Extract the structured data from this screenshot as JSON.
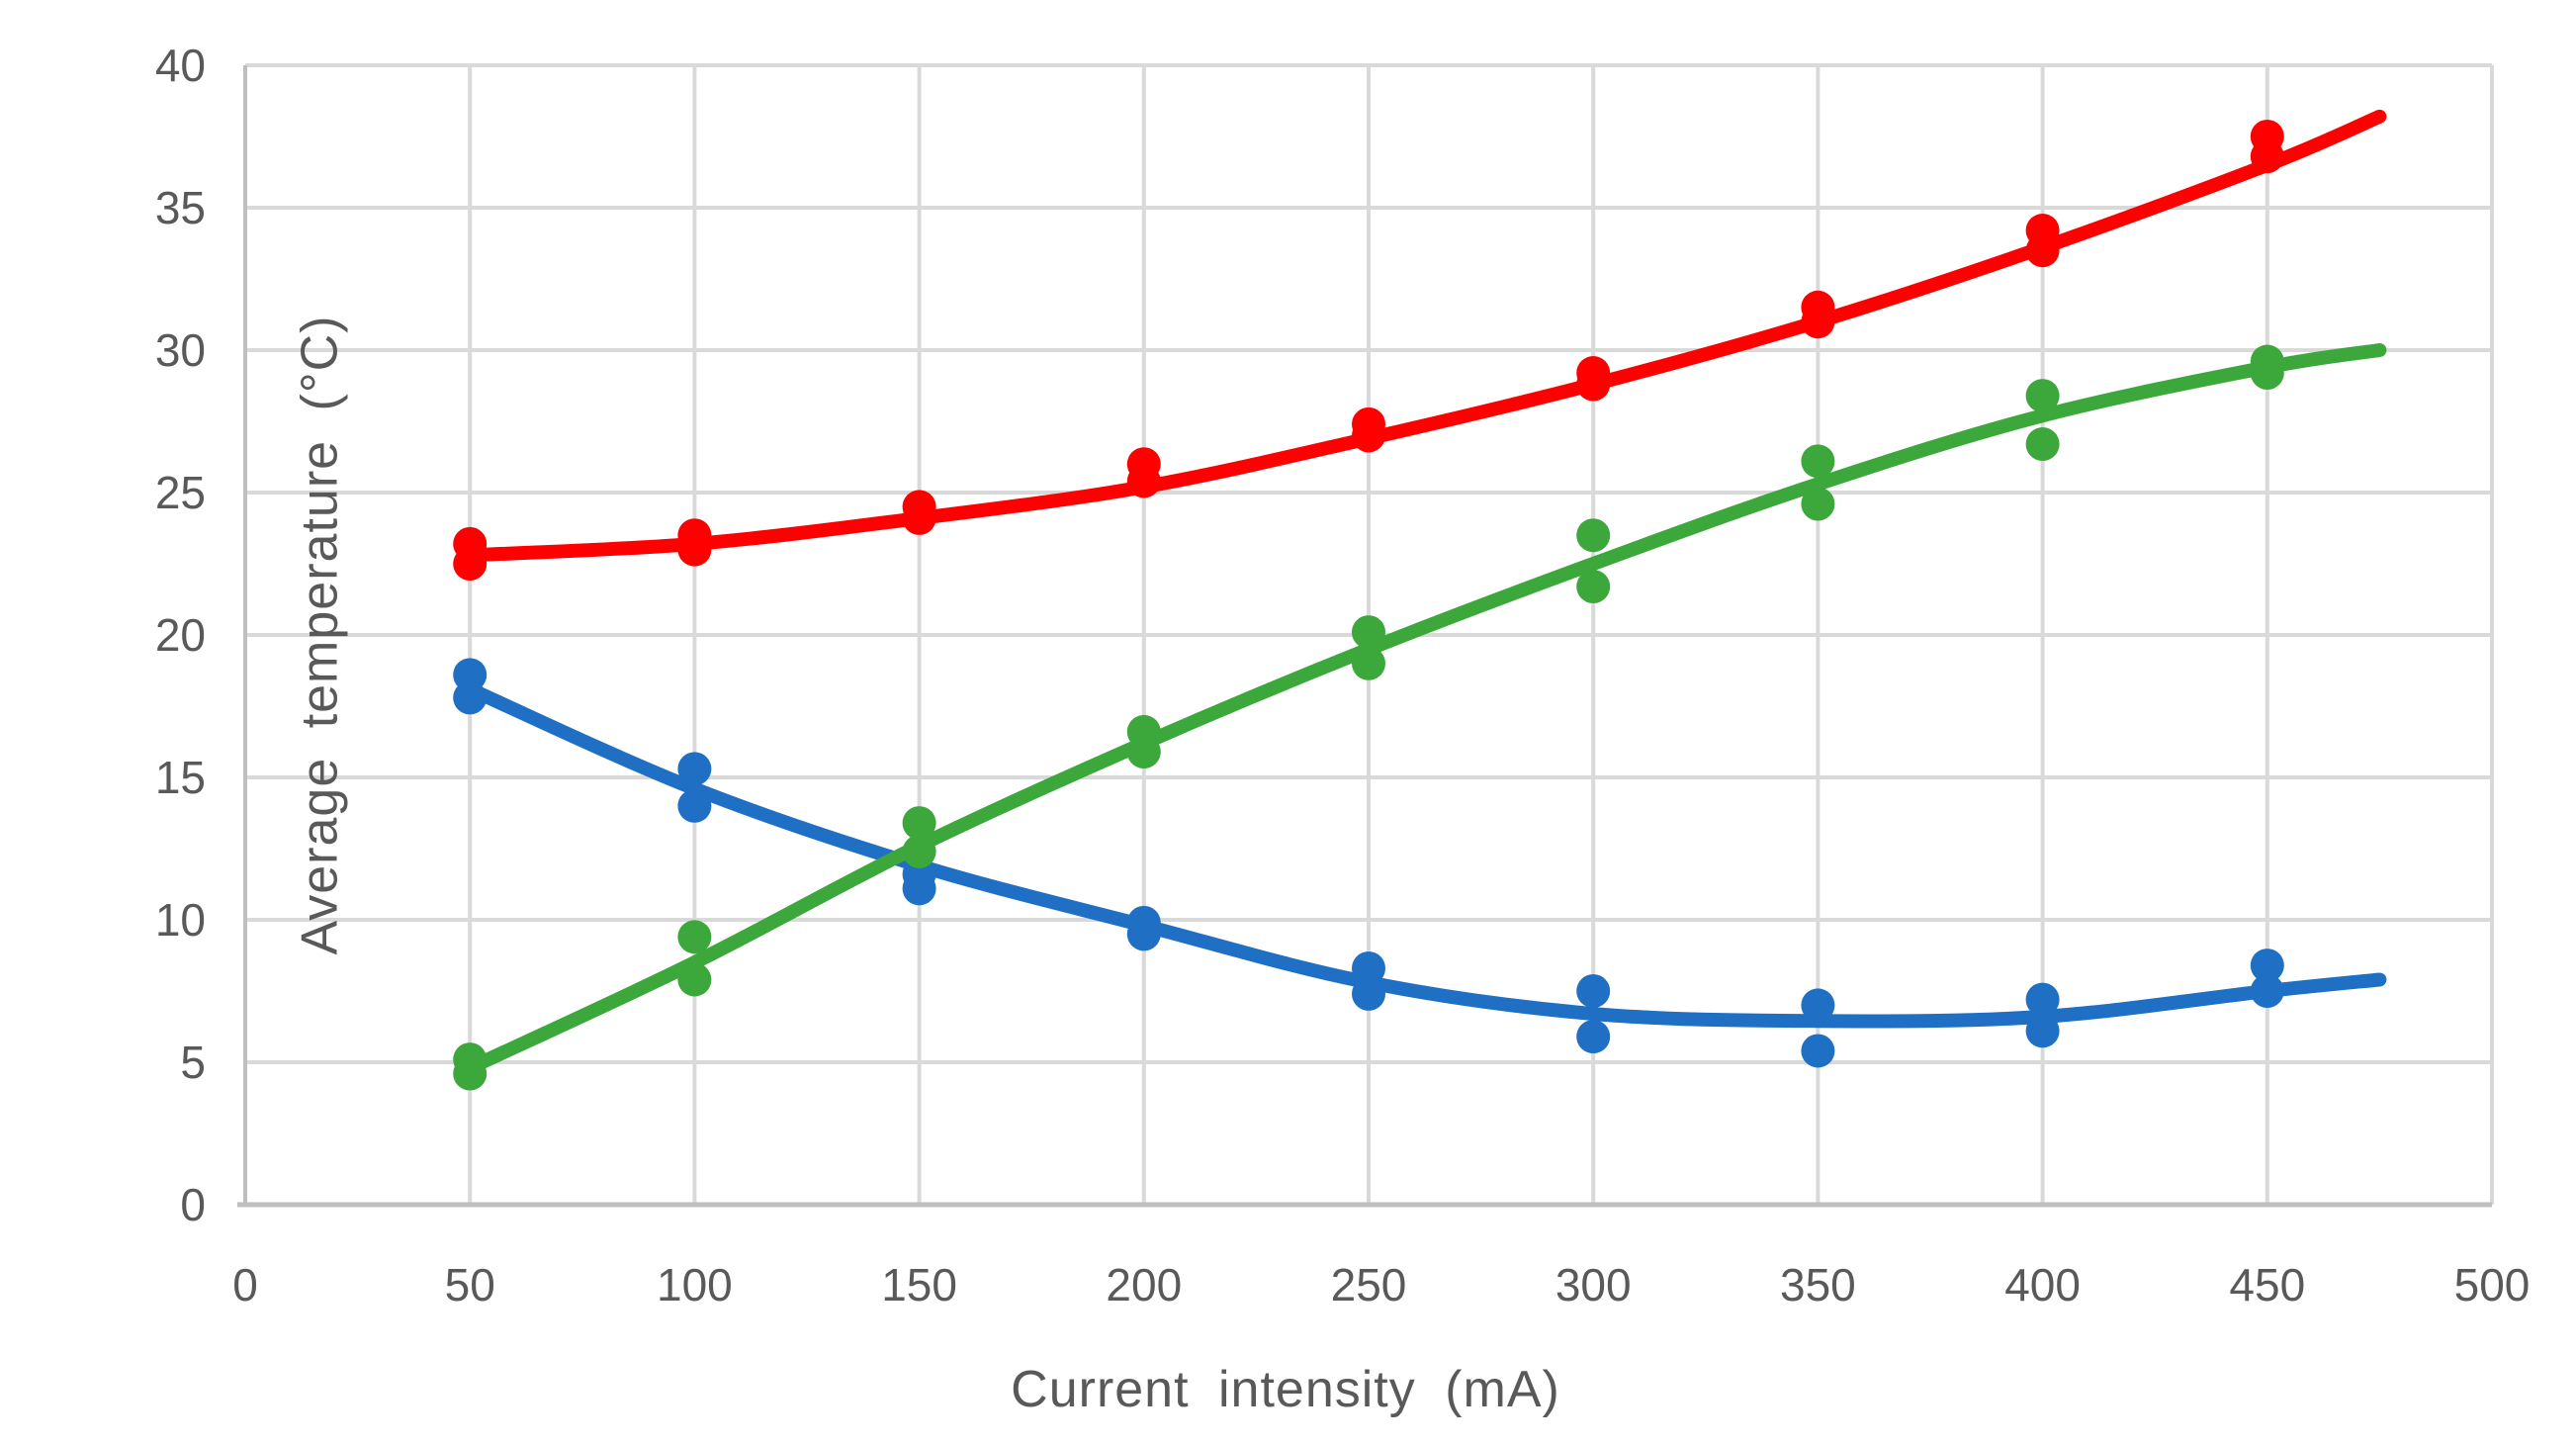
{
  "chart_data": {
    "type": "scatter",
    "title": "",
    "xlabel": "Current intensity (mA)",
    "ylabel": "Average temperature (°C)",
    "xlim": [
      0,
      500
    ],
    "ylim": [
      0,
      40
    ],
    "x_ticks": [
      0,
      50,
      100,
      150,
      200,
      250,
      300,
      350,
      400,
      450,
      500
    ],
    "y_ticks": [
      0,
      5,
      10,
      15,
      20,
      25,
      30,
      35,
      40
    ],
    "grid": true,
    "legend": "none",
    "x": [
      50,
      100,
      150,
      200,
      250,
      300,
      350,
      400,
      450
    ],
    "series": [
      {
        "name": "red-series",
        "color": "#FF0000",
        "run1": [
          23.2,
          23.5,
          24.5,
          26.0,
          27.4,
          29.2,
          31.5,
          34.2,
          37.5
        ],
        "run2": [
          22.5,
          23.0,
          24.1,
          25.4,
          27.0,
          28.8,
          31.0,
          33.5,
          36.8
        ],
        "trend_x": [
          50,
          100,
          150,
          200,
          250,
          300,
          350,
          400,
          450,
          475
        ],
        "trend_y": [
          22.8,
          23.2,
          24.1,
          25.2,
          26.9,
          28.8,
          31.0,
          33.6,
          36.5,
          38.2
        ]
      },
      {
        "name": "blue-series",
        "color": "#1F6FC4",
        "run1": [
          18.6,
          15.3,
          11.6,
          9.9,
          8.3,
          7.5,
          7.0,
          7.2,
          8.4
        ],
        "run2": [
          17.8,
          14.0,
          11.1,
          9.5,
          7.4,
          5.9,
          5.4,
          6.1,
          7.5
        ],
        "trend_x": [
          50,
          100,
          150,
          200,
          250,
          300,
          350,
          400,
          450,
          475
        ],
        "trend_y": [
          18.1,
          14.6,
          11.9,
          9.8,
          7.8,
          6.7,
          6.45,
          6.6,
          7.5,
          7.9
        ]
      },
      {
        "name": "green-series",
        "color": "#3CA83C",
        "run1": [
          5.1,
          9.4,
          13.4,
          16.6,
          20.1,
          23.5,
          26.1,
          28.4,
          29.6
        ],
        "run2": [
          4.6,
          7.9,
          12.4,
          15.9,
          19.0,
          21.7,
          24.6,
          26.7,
          29.2
        ],
        "trend_x": [
          50,
          100,
          150,
          200,
          250,
          300,
          350,
          400,
          450,
          475
        ],
        "trend_y": [
          4.8,
          8.5,
          12.6,
          16.2,
          19.5,
          22.5,
          25.3,
          27.7,
          29.4,
          30.0
        ]
      }
    ],
    "style": {
      "gridline_color": "#D9D9D9",
      "axis_line_color": "#BFBFBF",
      "tick_label_color": "#595959",
      "axis_title_color": "#595959"
    }
  }
}
